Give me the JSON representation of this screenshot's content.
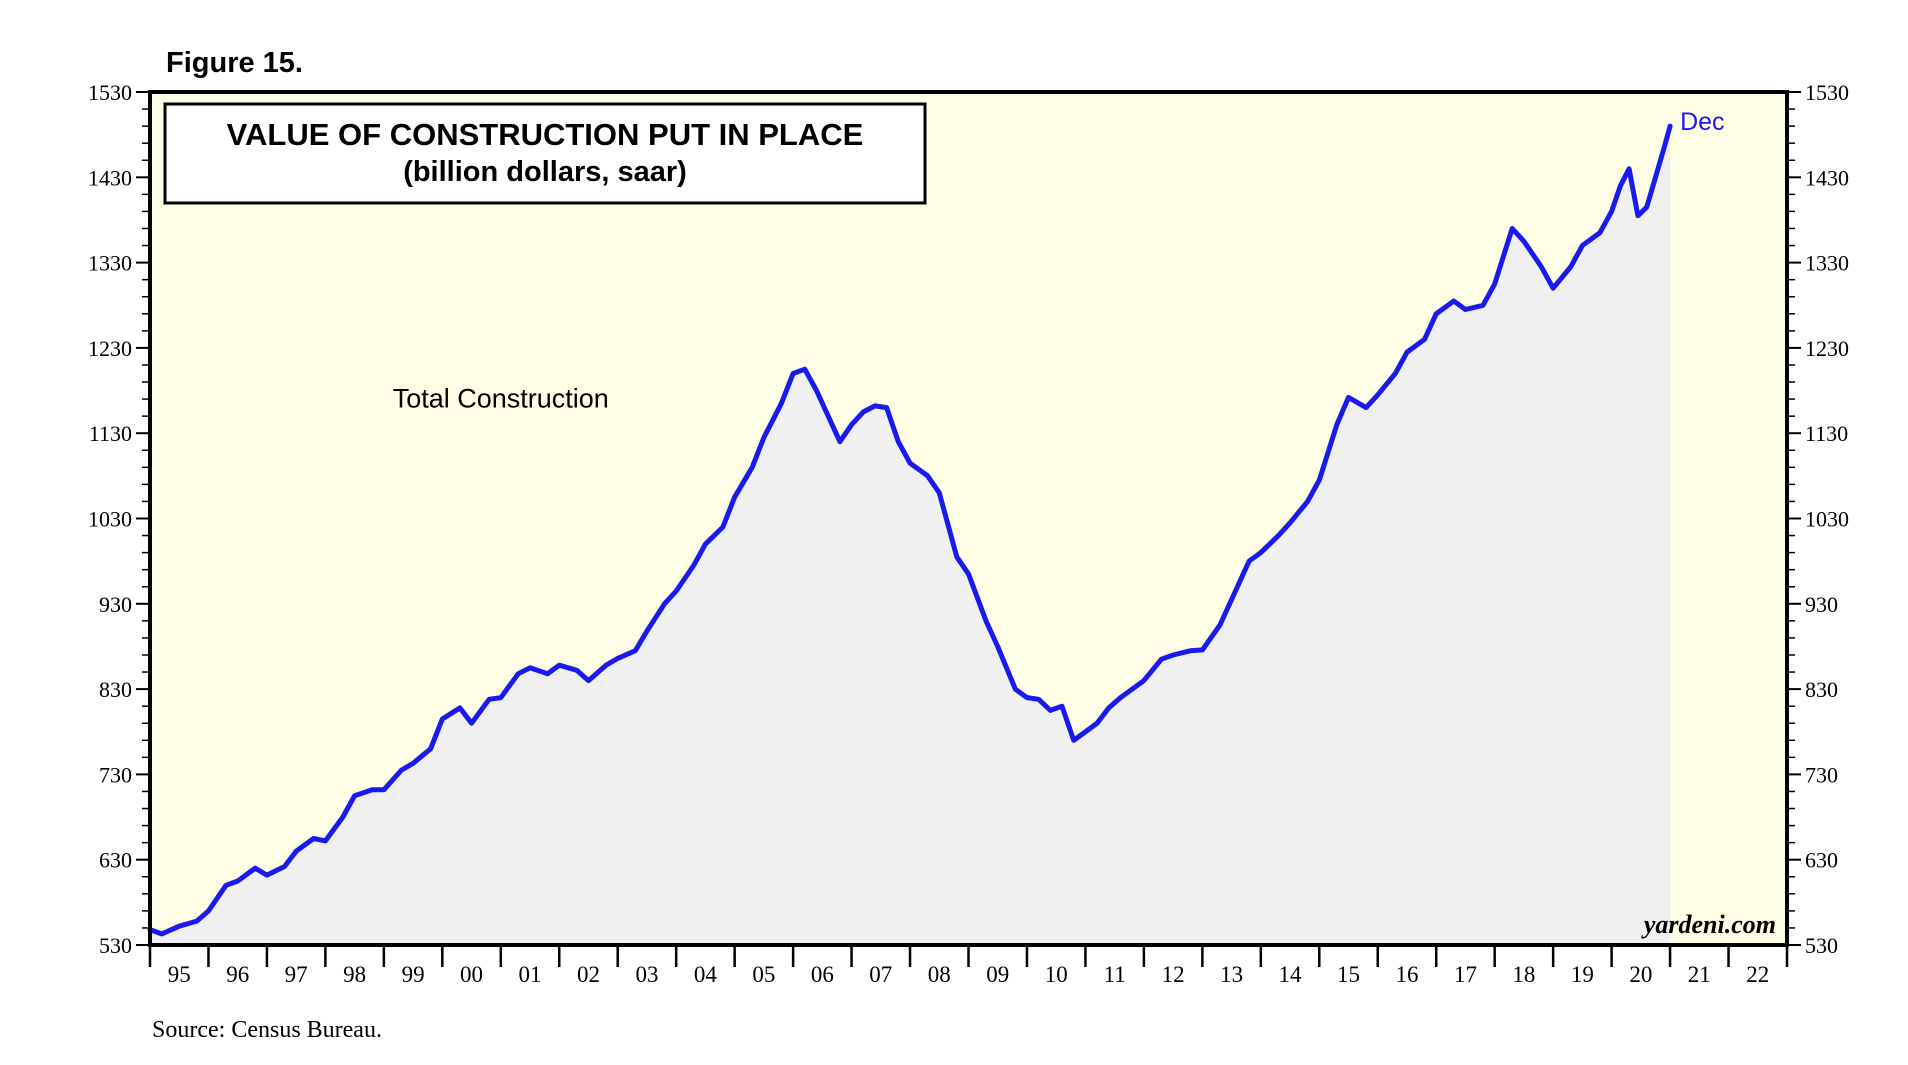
{
  "figure_label": "Figure 15.",
  "source_note": "Source: Census Bureau.",
  "watermark": "yardeni.com",
  "colors": {
    "plot_background": "#fefee6",
    "area_fill": "#f0f0f0",
    "line": "#1a1aee",
    "axis": "#000000",
    "end_label": "#1a1aee"
  },
  "chart_data": {
    "type": "area",
    "title": "VALUE OF CONSTRUCTION PUT IN PLACE",
    "subtitle": "(billion dollars, saar)",
    "xlabel": "",
    "ylabel": "",
    "ylim": [
      530,
      1530
    ],
    "xlim": [
      1995.0,
      2023.0
    ],
    "yticks": [
      530,
      630,
      730,
      830,
      930,
      1030,
      1130,
      1230,
      1330,
      1430,
      1530
    ],
    "ytick_labels": [
      "530",
      "630",
      "730",
      "830",
      "930",
      "1030",
      "1130",
      "1230",
      "1330",
      "1430",
      "1530"
    ],
    "minor_yticks_per_major": 4,
    "xtick_years": [
      1995,
      1996,
      1997,
      1998,
      1999,
      2000,
      2001,
      2002,
      2003,
      2004,
      2005,
      2006,
      2007,
      2008,
      2009,
      2010,
      2011,
      2012,
      2013,
      2014,
      2015,
      2016,
      2017,
      2018,
      2019,
      2020,
      2021,
      2022
    ],
    "xtick_labels": [
      "95",
      "96",
      "97",
      "98",
      "99",
      "00",
      "01",
      "02",
      "03",
      "04",
      "05",
      "06",
      "07",
      "08",
      "09",
      "10",
      "11",
      "12",
      "13",
      "14",
      "15",
      "16",
      "17",
      "18",
      "19",
      "20",
      "21",
      "22"
    ],
    "grid": false,
    "series": [
      {
        "name": "Total Construction",
        "end_label": "Dec",
        "x": [
          1995.0,
          1995.2,
          1995.5,
          1995.8,
          1996.0,
          1996.3,
          1996.5,
          1996.8,
          1997.0,
          1997.3,
          1997.5,
          1997.8,
          1998.0,
          1998.3,
          1998.5,
          1998.8,
          1999.0,
          1999.3,
          1999.5,
          1999.8,
          2000.0,
          2000.3,
          2000.5,
          2000.8,
          2001.0,
          2001.3,
          2001.5,
          2001.8,
          2002.0,
          2002.3,
          2002.5,
          2002.8,
          2003.0,
          2003.3,
          2003.5,
          2003.8,
          2004.0,
          2004.3,
          2004.5,
          2004.8,
          2005.0,
          2005.3,
          2005.5,
          2005.8,
          2006.0,
          2006.2,
          2006.4,
          2006.6,
          2006.8,
          2007.0,
          2007.2,
          2007.4,
          2007.6,
          2007.8,
          2008.0,
          2008.3,
          2008.5,
          2008.8,
          2009.0,
          2009.3,
          2009.5,
          2009.8,
          2010.0,
          2010.2,
          2010.4,
          2010.6,
          2010.8,
          2011.0,
          2011.2,
          2011.4,
          2011.6,
          2011.8,
          2012.0,
          2012.3,
          2012.5,
          2012.8,
          2013.0,
          2013.3,
          2013.5,
          2013.8,
          2014.0,
          2014.3,
          2014.5,
          2014.8,
          2015.0,
          2015.3,
          2015.5,
          2015.8,
          2016.0,
          2016.3,
          2016.5,
          2016.8,
          2017.0,
          2017.3,
          2017.5,
          2017.8,
          2018.0,
          2018.3,
          2018.5,
          2018.8,
          2019.0,
          2019.3,
          2019.5,
          2019.8,
          2020.0,
          2020.15,
          2020.3,
          2020.45,
          2020.6,
          2020.75,
          2020.9,
          2021.0
        ],
        "values": [
          548,
          543,
          552,
          558,
          570,
          600,
          605,
          620,
          612,
          622,
          640,
          655,
          652,
          680,
          705,
          712,
          712,
          735,
          743,
          760,
          795,
          808,
          790,
          818,
          820,
          848,
          855,
          848,
          858,
          852,
          840,
          858,
          866,
          875,
          898,
          930,
          945,
          975,
          1000,
          1020,
          1055,
          1090,
          1125,
          1165,
          1200,
          1205,
          1180,
          1150,
          1120,
          1140,
          1155,
          1162,
          1160,
          1120,
          1095,
          1080,
          1060,
          985,
          965,
          910,
          880,
          830,
          820,
          818,
          805,
          810,
          770,
          780,
          790,
          808,
          820,
          830,
          840,
          865,
          870,
          875,
          876,
          905,
          935,
          980,
          990,
          1010,
          1025,
          1050,
          1075,
          1140,
          1172,
          1160,
          1175,
          1200,
          1225,
          1240,
          1270,
          1285,
          1275,
          1280,
          1305,
          1370,
          1355,
          1325,
          1300,
          1325,
          1350,
          1365,
          1390,
          1420,
          1440,
          1385,
          1395,
          1430,
          1465,
          1490
        ]
      }
    ],
    "annotations": [
      {
        "text": "Total Construction",
        "x": 2001.0,
        "y": 1160
      }
    ]
  }
}
